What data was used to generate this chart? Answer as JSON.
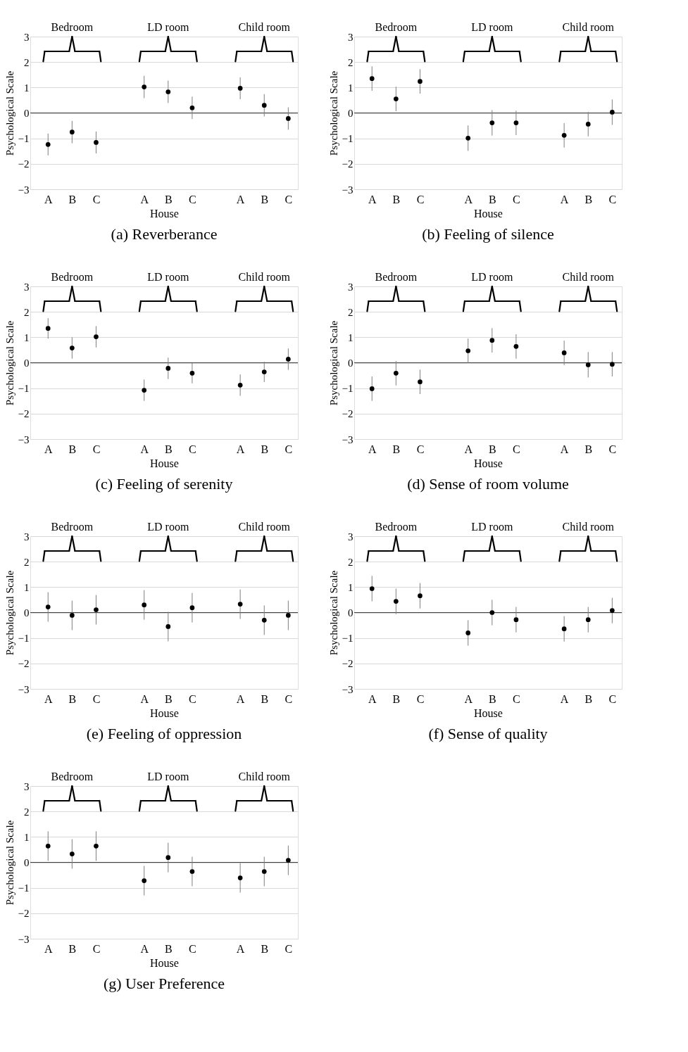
{
  "chart_data": [
    {
      "type": "scatter",
      "title": "(a) Reverberance",
      "xlabel": "House",
      "ylabel": "Psychological Scale",
      "annotations": [
        "Bedroom",
        "LD room",
        "Child room"
      ],
      "categories": [
        "A",
        "B",
        "C",
        "A",
        "B",
        "C",
        "A",
        "B",
        "C"
      ],
      "color": "#000000",
      "marker": "circle",
      "grid": "y",
      "ylim": [
        -3,
        3
      ],
      "yticks": [
        -3,
        -2,
        -1,
        0,
        1,
        2,
        3
      ],
      "ref_lines": [
        {
          "axis": "y",
          "value": 0,
          "color": "#404040"
        }
      ],
      "values": [
        -1.24,
        -0.75,
        -1.16,
        1.02,
        0.83,
        0.2,
        0.97,
        0.3,
        -0.22
      ],
      "errors": [
        0.43,
        0.44,
        0.43,
        0.44,
        0.44,
        0.44,
        0.43,
        0.44,
        0.44
      ]
    },
    {
      "type": "scatter",
      "title": "(b) Feeling of silence",
      "xlabel": "House",
      "ylabel": "Psychological Scale",
      "annotations": [
        "Bedroom",
        "LD room",
        "Child room"
      ],
      "categories": [
        "A",
        "B",
        "C",
        "A",
        "B",
        "C",
        "A",
        "B",
        "C"
      ],
      "color": "#000000",
      "marker": "circle",
      "grid": "y",
      "ylim": [
        -3,
        3
      ],
      "yticks": [
        -3,
        -2,
        -1,
        0,
        1,
        2,
        3
      ],
      "ref_lines": [
        {
          "axis": "y",
          "value": 0,
          "color": "#404040"
        }
      ],
      "values": [
        1.35,
        0.55,
        1.24,
        -0.99,
        -0.39,
        -0.39,
        -0.88,
        -0.44,
        0.03
      ],
      "errors": [
        0.48,
        0.48,
        0.48,
        0.5,
        0.5,
        0.48,
        0.48,
        0.48,
        0.5
      ]
    },
    {
      "type": "scatter",
      "title": "(c) Feeling of serenity",
      "xlabel": "House",
      "ylabel": "Psychological Scale",
      "annotations": [
        "Bedroom",
        "LD room",
        "Child room"
      ],
      "categories": [
        "A",
        "B",
        "C",
        "A",
        "B",
        "C",
        "A",
        "B",
        "C"
      ],
      "color": "#000000",
      "marker": "circle",
      "grid": "y",
      "ylim": [
        -3,
        3
      ],
      "yticks": [
        -3,
        -2,
        -1,
        0,
        1,
        2,
        3
      ],
      "ref_lines": [
        {
          "axis": "y",
          "value": 0,
          "color": "#404040"
        }
      ],
      "values": [
        1.35,
        0.58,
        1.02,
        -1.08,
        -0.22,
        -0.41,
        -0.88,
        -0.36,
        0.14
      ],
      "errors": [
        0.4,
        0.42,
        0.42,
        0.42,
        0.42,
        0.4,
        0.42,
        0.4,
        0.42
      ]
    },
    {
      "type": "scatter",
      "title": "(d) Sense of room volume",
      "xlabel": "House",
      "ylabel": "Psychological Scale",
      "annotations": [
        "Bedroom",
        "LD room",
        "Child room"
      ],
      "categories": [
        "A",
        "B",
        "C",
        "A",
        "B",
        "C",
        "A",
        "B",
        "C"
      ],
      "color": "#000000",
      "marker": "circle",
      "grid": "y",
      "ylim": [
        -3,
        3
      ],
      "yticks": [
        -3,
        -2,
        -1,
        0,
        1,
        2,
        3
      ],
      "ref_lines": [
        {
          "axis": "y",
          "value": 0,
          "color": "#404040"
        }
      ],
      "values": [
        -1.02,
        -0.41,
        -0.75,
        0.47,
        0.88,
        0.64,
        0.39,
        -0.08,
        -0.06
      ],
      "errors": [
        0.48,
        0.48,
        0.48,
        0.48,
        0.48,
        0.48,
        0.48,
        0.5,
        0.48
      ]
    },
    {
      "type": "scatter",
      "title": "(e) Feeling of oppression",
      "xlabel": "House",
      "ylabel": "Psychological Scale",
      "annotations": [
        "Bedroom",
        "LD room",
        "Child room"
      ],
      "categories": [
        "A",
        "B",
        "C",
        "A",
        "B",
        "C",
        "A",
        "B",
        "C"
      ],
      "color": "#000000",
      "marker": "circle",
      "grid": "y",
      "ylim": [
        -3,
        3
      ],
      "yticks": [
        -3,
        -2,
        -1,
        0,
        1,
        2,
        3
      ],
      "ref_lines": [
        {
          "axis": "y",
          "value": 0,
          "color": "#404040"
        }
      ],
      "values": [
        0.22,
        -0.11,
        0.11,
        0.3,
        -0.55,
        0.19,
        0.33,
        -0.3,
        -0.11
      ],
      "errors": [
        0.58,
        0.58,
        0.58,
        0.58,
        0.58,
        0.58,
        0.58,
        0.58,
        0.58
      ]
    },
    {
      "type": "scatter",
      "title": "(f) Sense of quality",
      "xlabel": "House",
      "ylabel": "Psychological Scale",
      "annotations": [
        "Bedroom",
        "LD room",
        "Child room"
      ],
      "categories": [
        "A",
        "B",
        "C",
        "A",
        "B",
        "C",
        "A",
        "B",
        "C"
      ],
      "color": "#000000",
      "marker": "circle",
      "grid": "y",
      "ylim": [
        -3,
        3
      ],
      "yticks": [
        -3,
        -2,
        -1,
        0,
        1,
        2,
        3
      ],
      "ref_lines": [
        {
          "axis": "y",
          "value": 0,
          "color": "#404040"
        }
      ],
      "values": [
        0.94,
        0.44,
        0.66,
        -0.8,
        0.0,
        -0.28,
        -0.64,
        -0.28,
        0.08
      ],
      "errors": [
        0.5,
        0.5,
        0.5,
        0.5,
        0.5,
        0.5,
        0.5,
        0.5,
        0.5
      ]
    },
    {
      "type": "scatter",
      "title": "(g) User Preference",
      "xlabel": "House",
      "ylabel": "Psychological Scale",
      "annotations": [
        "Bedroom",
        "LD room",
        "Child room"
      ],
      "categories": [
        "A",
        "B",
        "C",
        "A",
        "B",
        "C",
        "A",
        "B",
        "C"
      ],
      "color": "#000000",
      "marker": "circle",
      "grid": "y",
      "ylim": [
        -3,
        3
      ],
      "yticks": [
        -3,
        -2,
        -1,
        0,
        1,
        2,
        3
      ],
      "ref_lines": [
        {
          "axis": "y",
          "value": 0,
          "color": "#404040"
        }
      ],
      "values": [
        0.64,
        0.33,
        0.64,
        -0.72,
        0.19,
        -0.36,
        -0.61,
        -0.36,
        0.08
      ],
      "errors": [
        0.58,
        0.58,
        0.58,
        0.58,
        0.58,
        0.58,
        0.58,
        0.58,
        0.58
      ]
    }
  ]
}
